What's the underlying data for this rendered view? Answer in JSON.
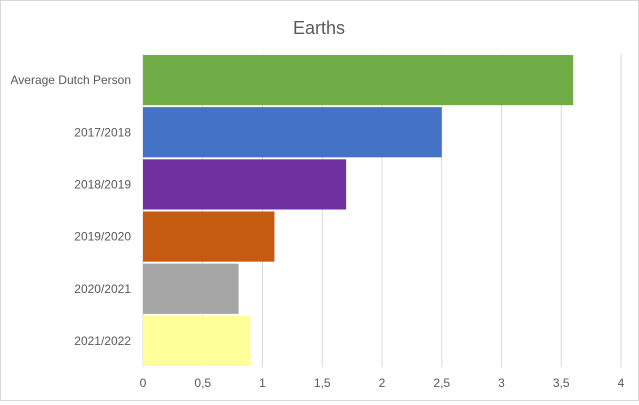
{
  "chart_data": {
    "type": "bar",
    "orientation": "horizontal",
    "title": "Earths",
    "xlabel": "",
    "ylabel": "",
    "categories": [
      "Average Dutch Person",
      "2017/2018",
      "2018/2019",
      "2019/2020",
      "2020/2021",
      "2021/2022"
    ],
    "values": [
      3.6,
      2.5,
      1.7,
      1.1,
      0.8,
      0.9
    ],
    "colors": [
      "#70ad47",
      "#4472c4",
      "#7030a0",
      "#c55a11",
      "#a5a5a5",
      "#ffff99"
    ],
    "xlim": [
      0,
      4
    ],
    "xticks": [
      0,
      0.5,
      1,
      1.5,
      2,
      2.5,
      3,
      3.5,
      4
    ],
    "xtick_labels": [
      "0",
      "0,5",
      "1",
      "1,5",
      "2",
      "2,5",
      "3",
      "3,5",
      "4"
    ],
    "grid": "vertical",
    "legend": "none"
  }
}
